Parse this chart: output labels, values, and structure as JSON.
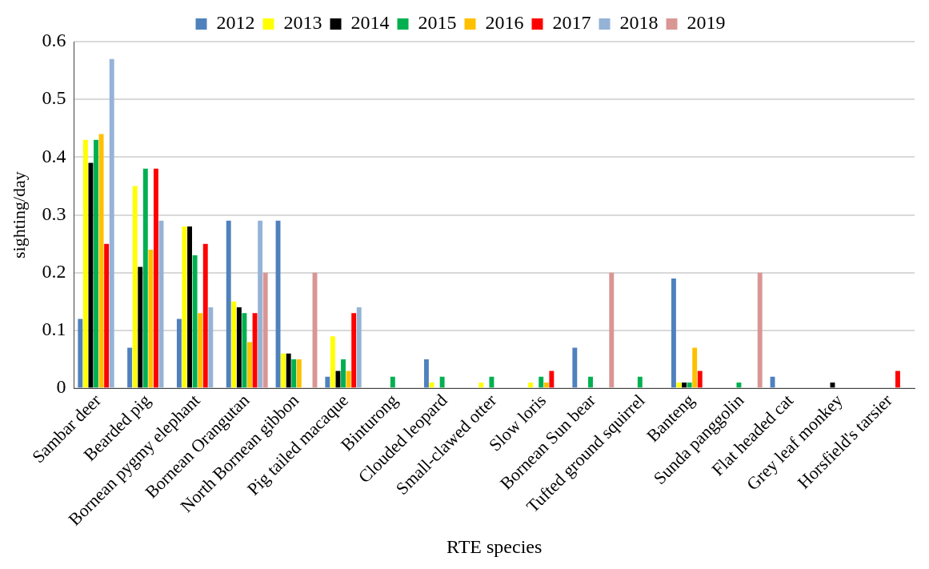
{
  "chart_data": {
    "type": "bar",
    "xlabel": "RTE species",
    "ylabel": "sighting/day",
    "categories": [
      "Sambar deer",
      "Bearded pig",
      "Bornean pygmy elephant",
      "Bornean Orangutan",
      "North Bornean gibbon",
      "Pig tailed macaque",
      "Binturong",
      "Clouded leopard",
      "Small-clawed otter",
      "Slow loris",
      "Bornean Sun bear",
      "Tufted ground squirrel",
      "Banteng",
      "Sunda panggolin",
      "Flat headed cat",
      "Grey leaf monkey",
      "Horsfield's tarsier"
    ],
    "series": [
      {
        "name": "2012",
        "color": "#4f81bd",
        "values": [
          0.12,
          0.07,
          0.12,
          0.29,
          0.29,
          0.02,
          null,
          0.05,
          null,
          null,
          0.07,
          null,
          0.19,
          null,
          0.02,
          null,
          null
        ]
      },
      {
        "name": "2013",
        "color": "#ffff00",
        "values": [
          0.43,
          0.35,
          0.28,
          0.15,
          0.06,
          0.09,
          null,
          0.01,
          0.01,
          0.01,
          null,
          null,
          0.01,
          null,
          null,
          null,
          null
        ]
      },
      {
        "name": "2014",
        "color": "#000000",
        "values": [
          0.39,
          0.21,
          0.28,
          0.14,
          0.06,
          0.03,
          null,
          null,
          null,
          null,
          null,
          null,
          0.01,
          null,
          null,
          0.01,
          null
        ]
      },
      {
        "name": "2015",
        "color": "#00b050",
        "values": [
          0.43,
          0.38,
          0.23,
          0.13,
          0.05,
          0.05,
          0.02,
          0.02,
          0.02,
          0.02,
          0.02,
          0.02,
          0.01,
          0.01,
          null,
          null,
          null
        ]
      },
      {
        "name": "2016",
        "color": "#ffc000",
        "values": [
          0.44,
          0.24,
          0.13,
          0.08,
          0.05,
          0.03,
          null,
          null,
          null,
          0.01,
          null,
          null,
          0.07,
          null,
          null,
          null,
          null
        ]
      },
      {
        "name": "2017",
        "color": "#ff0000",
        "values": [
          0.25,
          0.38,
          0.25,
          0.13,
          null,
          0.13,
          null,
          null,
          null,
          0.03,
          null,
          null,
          0.03,
          null,
          null,
          null,
          0.03
        ]
      },
      {
        "name": "2018",
        "color": "#95b3d7",
        "values": [
          0.57,
          0.29,
          0.14,
          0.29,
          null,
          0.14,
          null,
          null,
          null,
          null,
          null,
          null,
          null,
          null,
          null,
          null,
          null
        ]
      },
      {
        "name": "2019",
        "color": "#d99694",
        "values": [
          null,
          null,
          null,
          0.2,
          0.2,
          null,
          null,
          null,
          null,
          null,
          0.2,
          null,
          null,
          0.2,
          null,
          null,
          null
        ]
      }
    ],
    "ylim": [
      0,
      0.6
    ],
    "yticks": [
      0,
      0.1,
      0.2,
      0.3,
      0.4,
      0.5,
      0.6
    ],
    "grid": "y",
    "legend": "top"
  }
}
